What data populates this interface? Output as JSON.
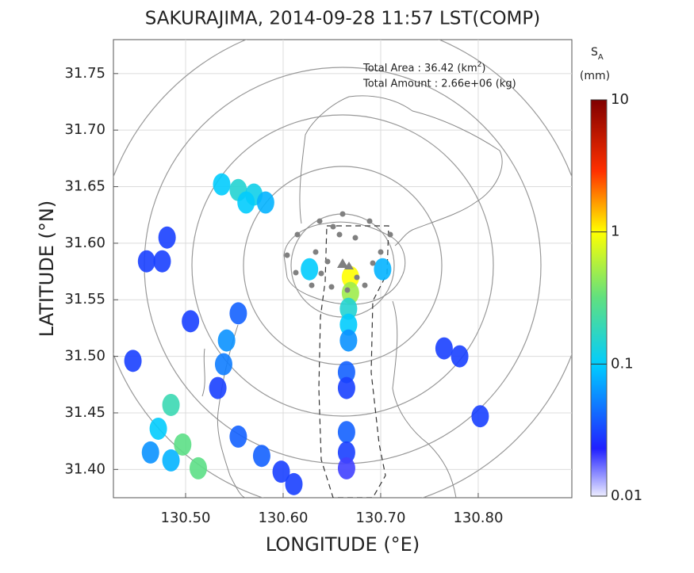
{
  "chart_data": {
    "type": "map",
    "title": "SAKURAJIMA, 2014-09-28 11:57 LST(COMP)",
    "x_label": "LONGITUDE (°E)",
    "y_label": "LATITUDE (°N)",
    "annotations": {
      "area": [
        "Total Area   : 36.42 (km",
        "2",
        ")"
      ],
      "amount": [
        "Total Amount : 2.66e+06 (kg)"
      ]
    },
    "colorbar": {
      "label": "S",
      "label_sub": "A",
      "unit": "(mm)",
      "lim": [
        0.01,
        10
      ],
      "ticks": [
        10,
        1,
        0.1,
        0.01
      ],
      "log": true
    },
    "xlim": [
      130.426,
      130.896
    ],
    "ylim": [
      31.375,
      31.78
    ],
    "xticks": [
      {
        "value": 130.5,
        "label": "130.50"
      },
      {
        "value": 130.6,
        "label": "130.60"
      },
      {
        "value": 130.7,
        "label": "130.70"
      },
      {
        "value": 130.8,
        "label": "130.80"
      }
    ],
    "yticks": [
      {
        "value": 31.4,
        "label": "31.40"
      },
      {
        "value": 31.45,
        "label": "31.45"
      },
      {
        "value": 31.5,
        "label": "31.50"
      },
      {
        "value": 31.55,
        "label": "31.55"
      },
      {
        "value": 31.6,
        "label": "31.60"
      },
      {
        "value": 31.65,
        "label": "31.65"
      },
      {
        "value": 31.7,
        "label": "31.70"
      },
      {
        "value": 31.75,
        "label": "31.75"
      }
    ],
    "grid": true,
    "series": [
      {
        "x": [
          130.537,
          130.554,
          130.57,
          130.582,
          130.562,
          130.627,
          130.702,
          130.669,
          130.669,
          130.667,
          130.667,
          130.667,
          130.665,
          130.665,
          130.665,
          130.665,
          130.665,
          130.542,
          130.539,
          130.533,
          130.554,
          130.505,
          130.446,
          130.46,
          130.476,
          130.481,
          130.781,
          130.765,
          130.802,
          130.578,
          130.598,
          130.554,
          130.611,
          130.472,
          130.497,
          130.513,
          130.485,
          130.464,
          130.485
        ],
        "y": [
          31.652,
          31.647,
          31.643,
          31.636,
          31.636,
          31.577,
          31.577,
          31.57,
          31.556,
          31.542,
          31.528,
          31.514,
          31.486,
          31.472,
          31.433,
          31.415,
          31.401,
          31.514,
          31.493,
          31.472,
          31.538,
          31.531,
          31.496,
          31.584,
          31.584,
          31.605,
          31.5,
          31.507,
          31.447,
          31.412,
          31.398,
          31.429,
          31.387,
          31.436,
          31.422,
          31.401,
          31.408,
          31.415,
          31.457
        ],
        "values": [
          0.1,
          0.15,
          0.12,
          0.08,
          0.1,
          0.1,
          0.08,
          1.0,
          0.5,
          0.15,
          0.1,
          0.06,
          0.04,
          0.03,
          0.04,
          0.03,
          0.02,
          0.06,
          0.05,
          0.03,
          0.04,
          0.03,
          0.03,
          0.03,
          0.03,
          0.03,
          0.03,
          0.03,
          0.03,
          0.04,
          0.03,
          0.04,
          0.03,
          0.1,
          0.3,
          0.3,
          0.08,
          0.06,
          0.2
        ]
      }
    ]
  }
}
